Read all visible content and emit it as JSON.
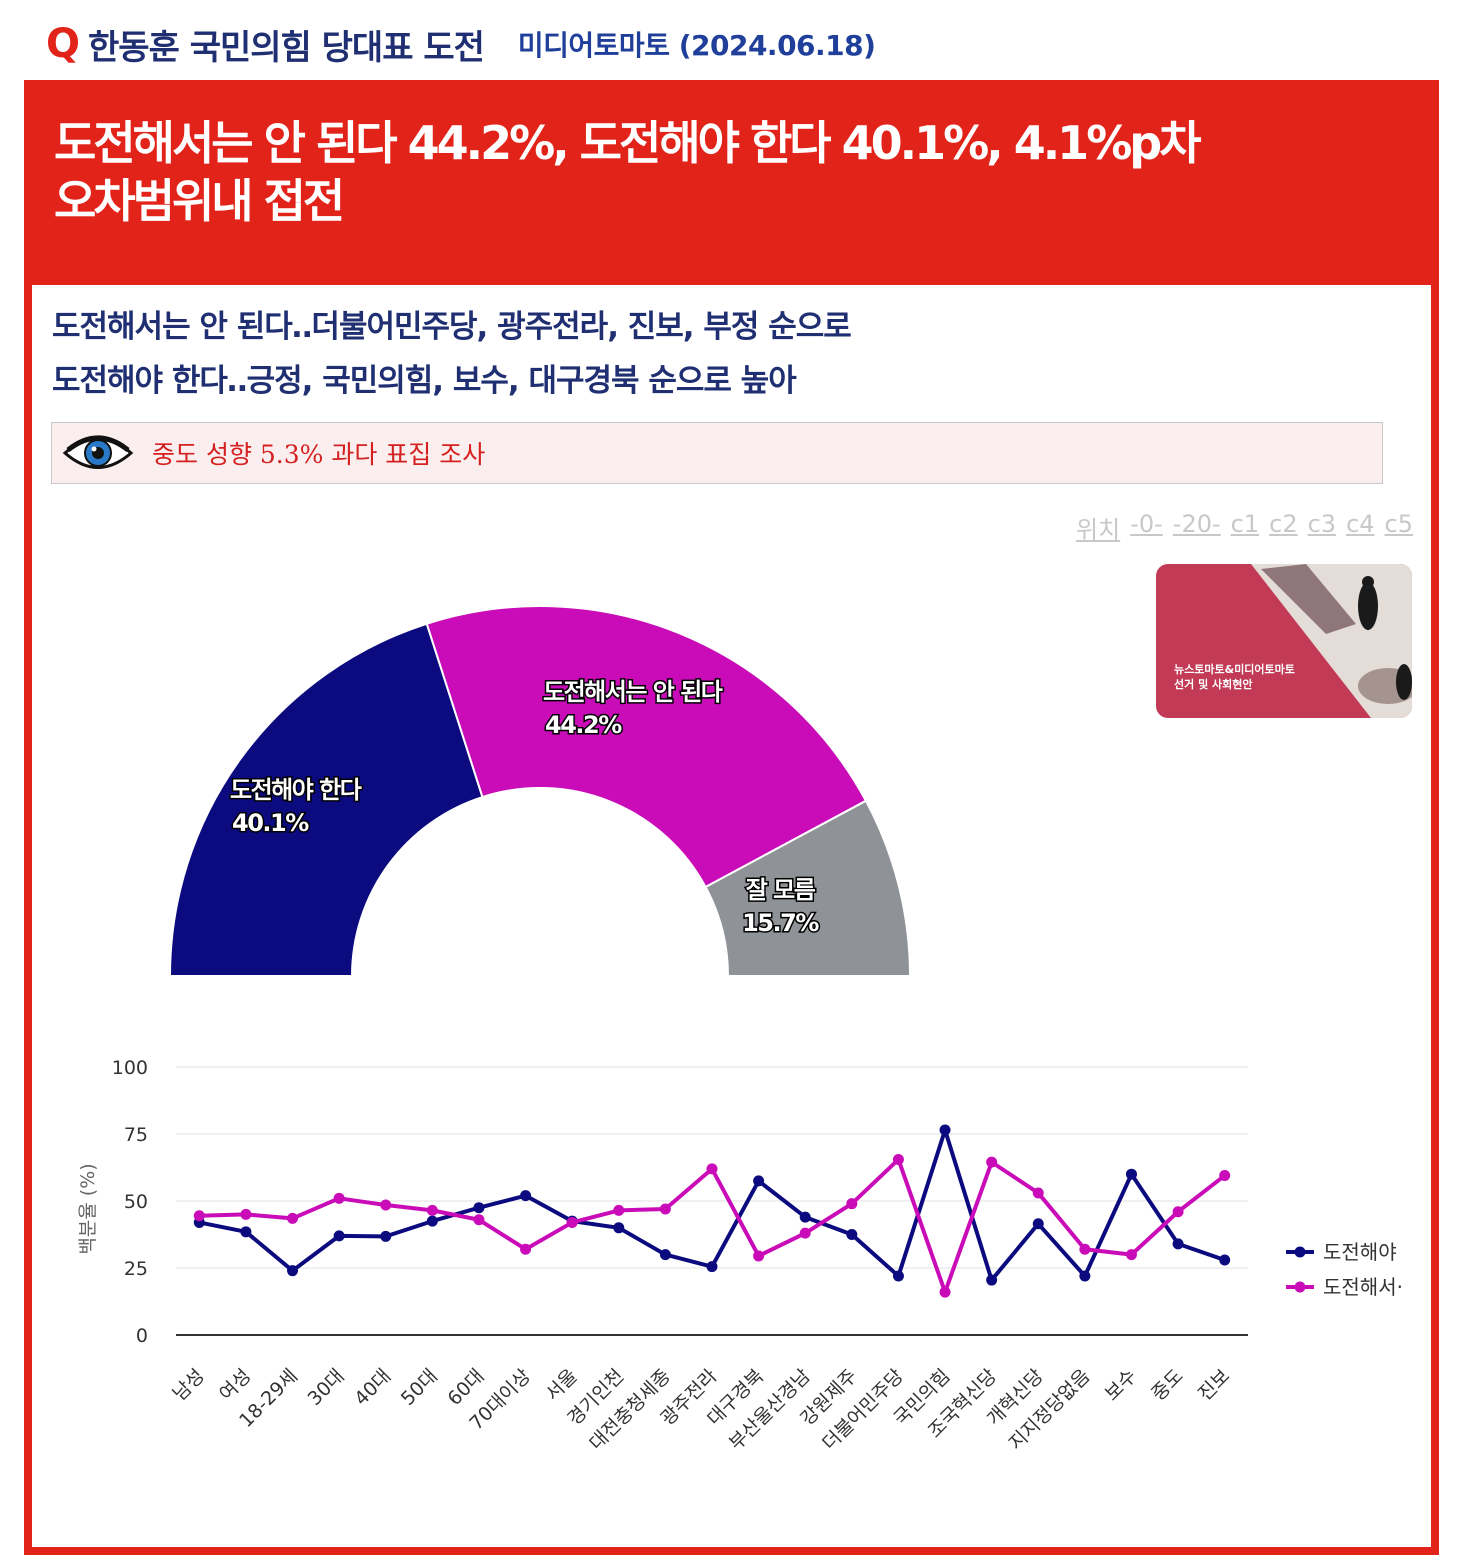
{
  "header": {
    "q_icon": "Q",
    "title": "한동훈 국민의힘 당대표 도전",
    "source": "미디어토마토 (2024.06.18)"
  },
  "headline": {
    "line1": "도전해서는 안 된다 44.2%, 도전해야 한다 40.1%, 4.1%p차",
    "line2": "오차범위내 접전"
  },
  "subheadline": {
    "line1": "도전해서는 안 된다‥더불어민주당, 광주전라, 진보, 부정 순으로",
    "line2": "도전해야 한다‥긍정, 국민의힘, 보수, 대구경북 순으로 높아"
  },
  "note": {
    "icon": "eye-icon",
    "text": "중도 성향 5.3% 과다 표집 조사"
  },
  "toolbar": {
    "items": [
      "위치",
      "-0-",
      "-20-",
      "c1",
      "c2",
      "c3",
      "c4",
      "c5"
    ]
  },
  "ad": {
    "line1": "뉴스토마토&미디어토마토",
    "line2": "선거 및 사회현안"
  },
  "colors": {
    "accent_red": "#e2231a",
    "navy": "#0b0b7f",
    "magenta": "#c90cb8",
    "gray": "#8f9398"
  },
  "chart_data": [
    {
      "type": "pie",
      "style": "half-donut",
      "slices": [
        {
          "label": "도전해야 한다",
          "value": 40.1,
          "value_label": "40.1%",
          "color": "#0b0b7f"
        },
        {
          "label": "도전해서는 안 된다",
          "value": 44.2,
          "value_label": "44.2%",
          "color": "#c90cb8"
        },
        {
          "label": "잘 모름",
          "value": 15.7,
          "value_label": "15.7%",
          "color": "#8f9398"
        }
      ]
    },
    {
      "type": "line",
      "ylabel": "백분율 (%)",
      "ylim": [
        0,
        100
      ],
      "yticks": [
        0,
        25,
        50,
        75,
        100
      ],
      "grid": true,
      "legend": "right",
      "categories": [
        "남성",
        "여성",
        "18-29세",
        "30대",
        "40대",
        "50대",
        "60대",
        "70대이상",
        "서울",
        "경기인천",
        "대전충청세종",
        "광주전라",
        "대구경북",
        "부산울산경남",
        "강원제주",
        "더불어민주당",
        "국민의힘",
        "조국혁신당",
        "개혁신당",
        "지지정당없음",
        "보수",
        "중도",
        "진보"
      ],
      "series": [
        {
          "name": "도전해야",
          "color": "#0b0b7f",
          "values": [
            42,
            38.5,
            24,
            37,
            36.8,
            42.5,
            47.5,
            52,
            42.5,
            40,
            30,
            25.5,
            57.5,
            44,
            37.5,
            22,
            76.5,
            20.5,
            41.5,
            22,
            60,
            34,
            28
          ]
        },
        {
          "name": "도전해서·",
          "color": "#c90cb8",
          "values": [
            44.5,
            45,
            43.5,
            51,
            48.5,
            46.5,
            43,
            32,
            42,
            46.5,
            47,
            62,
            29.5,
            38,
            49,
            65.5,
            16,
            64.5,
            53,
            32,
            30,
            46,
            59.5
          ]
        }
      ]
    }
  ]
}
